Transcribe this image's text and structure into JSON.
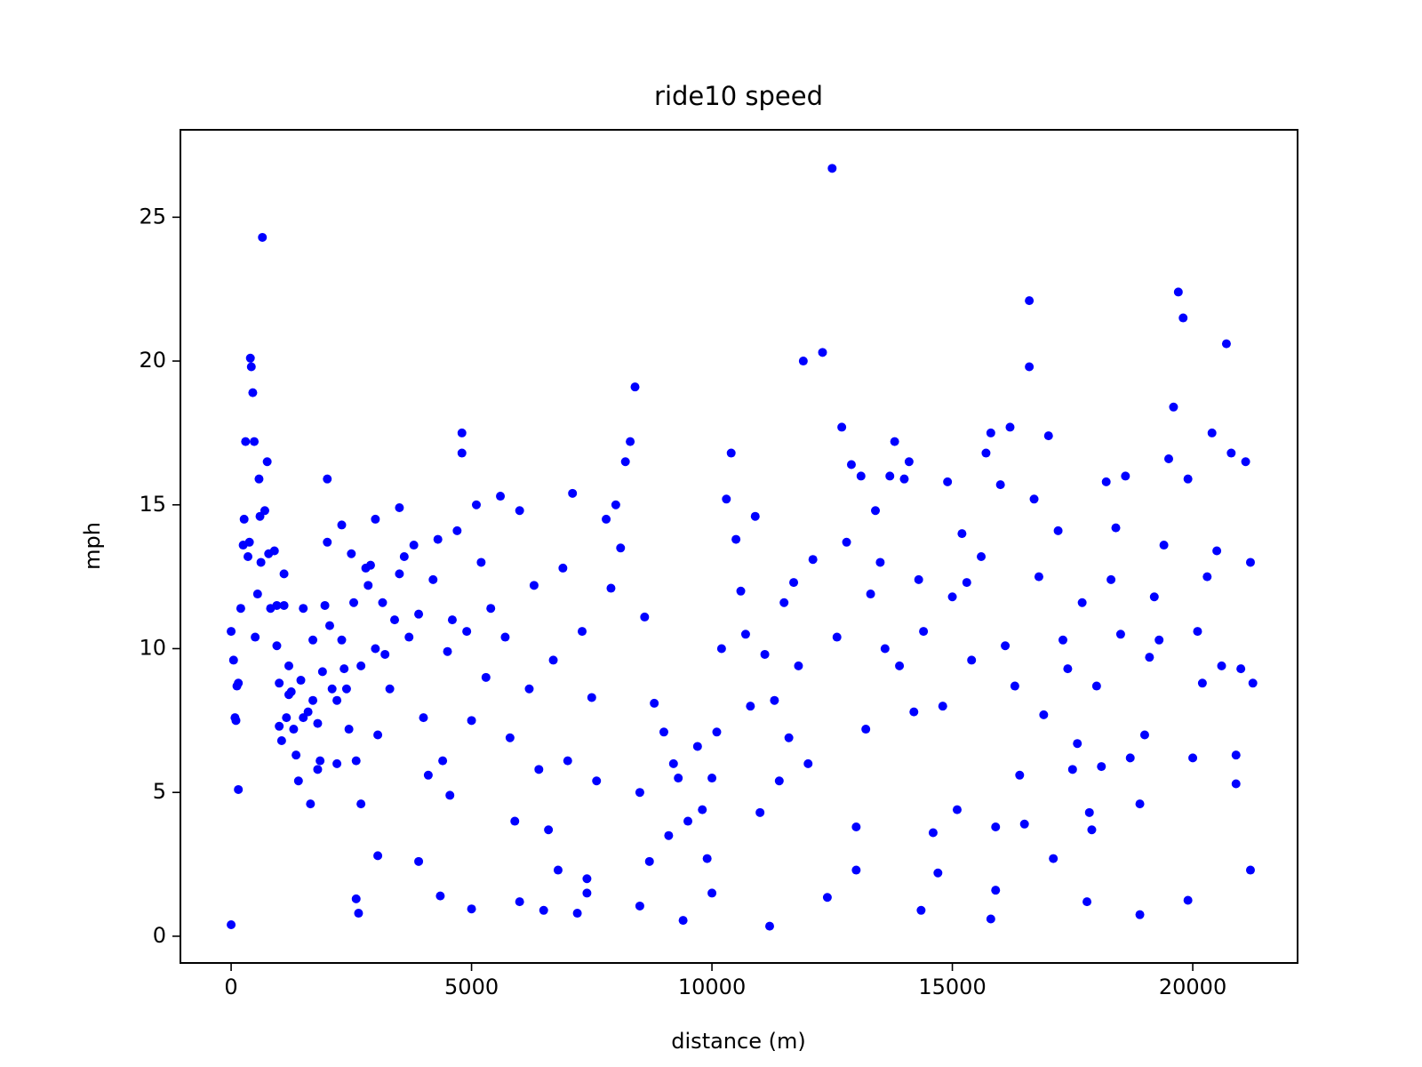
{
  "chart_data": {
    "type": "scatter",
    "title": "ride10 speed",
    "x_label": "distance (m)",
    "y_label": "mph",
    "color": "#0000ff",
    "xlim": [
      -1055,
      22180
    ],
    "ylim": [
      -0.93,
      28.04
    ],
    "xticks": [
      0,
      5000,
      10000,
      15000,
      20000
    ],
    "yticks": [
      0,
      5,
      10,
      15,
      20,
      25
    ],
    "x": [
      0,
      0,
      50,
      80,
      100,
      120,
      150,
      150,
      200,
      250,
      270,
      300,
      350,
      400,
      420,
      450,
      380,
      480,
      500,
      550,
      580,
      600,
      620,
      650,
      700,
      750,
      780,
      820,
      900,
      950,
      950,
      1000,
      1000,
      1050,
      1100,
      1100,
      1150,
      1200,
      1200,
      1250,
      1300,
      1350,
      1400,
      1450,
      1500,
      1500,
      1600,
      1650,
      1700,
      1700,
      1800,
      1800,
      1850,
      1900,
      1950,
      2000,
      2000,
      2050,
      2100,
      2200,
      2200,
      2300,
      2300,
      2350,
      2400,
      2450,
      2500,
      2550,
      2600,
      2600,
      2650,
      2700,
      2700,
      2800,
      2850,
      2900,
      3000,
      3000,
      3050,
      3050,
      3150,
      3200,
      3300,
      3400,
      3500,
      3500,
      3600,
      3700,
      3800,
      3900,
      3900,
      4000,
      4100,
      4200,
      4300,
      4350,
      4400,
      4500,
      4550,
      4600,
      4700,
      4800,
      4800,
      4900,
      5000,
      5000,
      5100,
      5200,
      5300,
      5400,
      5600,
      5700,
      5800,
      5900,
      6000,
      6000,
      6200,
      6300,
      6400,
      6500,
      6600,
      6700,
      6800,
      6900,
      7000,
      7100,
      7200,
      7300,
      7400,
      7400,
      7500,
      7600,
      7800,
      7900,
      8000,
      8100,
      8200,
      8300,
      8400,
      8500,
      8500,
      8600,
      8700,
      8800,
      9000,
      9100,
      9200,
      9300,
      9400,
      9500,
      9700,
      9800,
      9900,
      10000,
      10000,
      10100,
      10200,
      10300,
      10400,
      10500,
      10600,
      10700,
      10800,
      10900,
      11000,
      11100,
      11200,
      11300,
      11400,
      11500,
      11600,
      11700,
      11800,
      11900,
      12000,
      12100,
      12300,
      12400,
      12500,
      12600,
      12700,
      12800,
      12900,
      13000,
      13000,
      13100,
      13200,
      13300,
      13400,
      13500,
      13600,
      13700,
      13800,
      13900,
      14000,
      14100,
      14200,
      14300,
      14350,
      14400,
      14600,
      14700,
      14800,
      14900,
      15000,
      15100,
      15200,
      15300,
      15400,
      15600,
      15700,
      15800,
      15800,
      15900,
      15900,
      16000,
      16100,
      16200,
      16300,
      16400,
      16500,
      16600,
      16600,
      16700,
      16800,
      16900,
      17000,
      17100,
      17200,
      17300,
      17400,
      17500,
      17600,
      17700,
      17800,
      17850,
      17900,
      18000,
      18100,
      18200,
      18300,
      18400,
      18500,
      18600,
      18700,
      18900,
      18900,
      19000,
      19100,
      19200,
      19300,
      19400,
      19500,
      19600,
      19700,
      19800,
      19900,
      19900,
      20000,
      20100,
      20200,
      20300,
      20400,
      20500,
      20600,
      20700,
      20800,
      20900,
      20900,
      21000,
      21100,
      21200,
      21200,
      21250
    ],
    "values": [
      0.4,
      10.6,
      9.6,
      7.6,
      7.5,
      8.7,
      8.8,
      5.1,
      11.4,
      13.6,
      14.5,
      17.2,
      13.2,
      20.1,
      19.8,
      18.9,
      13.7,
      17.2,
      10.4,
      11.9,
      15.9,
      14.6,
      13,
      24.3,
      14.8,
      16.5,
      13.3,
      11.4,
      13.4,
      11.5,
      10.1,
      8.8,
      7.3,
      6.8,
      11.5,
      12.6,
      7.6,
      9.4,
      8.4,
      8.5,
      7.2,
      6.3,
      5.4,
      8.9,
      7.6,
      11.4,
      7.8,
      4.6,
      10.3,
      8.2,
      7.4,
      5.8,
      6.1,
      9.2,
      11.5,
      13.7,
      15.9,
      10.8,
      8.6,
      8.2,
      6,
      14.3,
      10.3,
      9.3,
      8.6,
      7.2,
      13.3,
      11.6,
      6.1,
      1.3,
      0.8,
      4.6,
      9.4,
      12.8,
      12.2,
      12.9,
      14.5,
      10,
      2.8,
      7,
      11.6,
      9.8,
      8.6,
      11,
      12.6,
      14.9,
      13.2,
      10.4,
      13.6,
      11.2,
      2.6,
      7.6,
      5.6,
      12.4,
      13.8,
      1.4,
      6.1,
      9.9,
      4.9,
      11,
      14.1,
      17.5,
      16.8,
      10.6,
      0.95,
      7.5,
      15,
      13,
      9,
      11.4,
      15.3,
      10.4,
      6.9,
      4,
      1.2,
      14.8,
      8.6,
      12.2,
      5.8,
      0.9,
      3.7,
      9.6,
      2.3,
      12.8,
      6.1,
      15.4,
      0.8,
      10.6,
      1.5,
      2,
      8.3,
      5.4,
      14.5,
      12.1,
      15,
      13.5,
      16.5,
      17.2,
      19.1,
      1.05,
      5,
      11.1,
      2.6,
      8.1,
      7.1,
      3.5,
      6,
      5.5,
      0.55,
      4,
      6.6,
      4.4,
      2.7,
      1.5,
      5.5,
      7.1,
      10,
      15.2,
      16.8,
      13.8,
      12,
      10.5,
      8,
      14.6,
      4.3,
      9.8,
      0.35,
      8.2,
      5.4,
      11.6,
      6.9,
      12.3,
      9.4,
      20,
      6,
      13.1,
      20.3,
      1.35,
      26.7,
      10.4,
      17.7,
      13.7,
      16.4,
      3.8,
      2.3,
      16,
      7.2,
      11.9,
      14.8,
      13,
      10,
      16,
      17.2,
      9.4,
      15.9,
      16.5,
      7.8,
      12.4,
      0.9,
      10.6,
      3.6,
      2.2,
      8,
      15.8,
      11.8,
      4.4,
      14,
      12.3,
      9.6,
      13.2,
      16.8,
      0.6,
      17.5,
      1.6,
      3.8,
      15.7,
      10.1,
      17.7,
      8.7,
      5.6,
      3.9,
      22.1,
      19.8,
      15.2,
      12.5,
      7.7,
      17.4,
      2.7,
      14.1,
      10.3,
      9.3,
      5.8,
      6.7,
      11.6,
      1.2,
      4.3,
      3.7,
      8.7,
      5.9,
      15.8,
      12.4,
      14.2,
      10.5,
      16,
      6.2,
      0.75,
      4.6,
      7,
      9.7,
      11.8,
      10.3,
      13.6,
      16.6,
      18.4,
      22.4,
      21.5,
      1.25,
      15.9,
      6.2,
      10.6,
      8.8,
      12.5,
      17.5,
      13.4,
      9.4,
      20.6,
      16.8,
      5.3,
      6.3,
      9.3,
      16.5,
      13,
      2.3,
      8.8
    ]
  }
}
